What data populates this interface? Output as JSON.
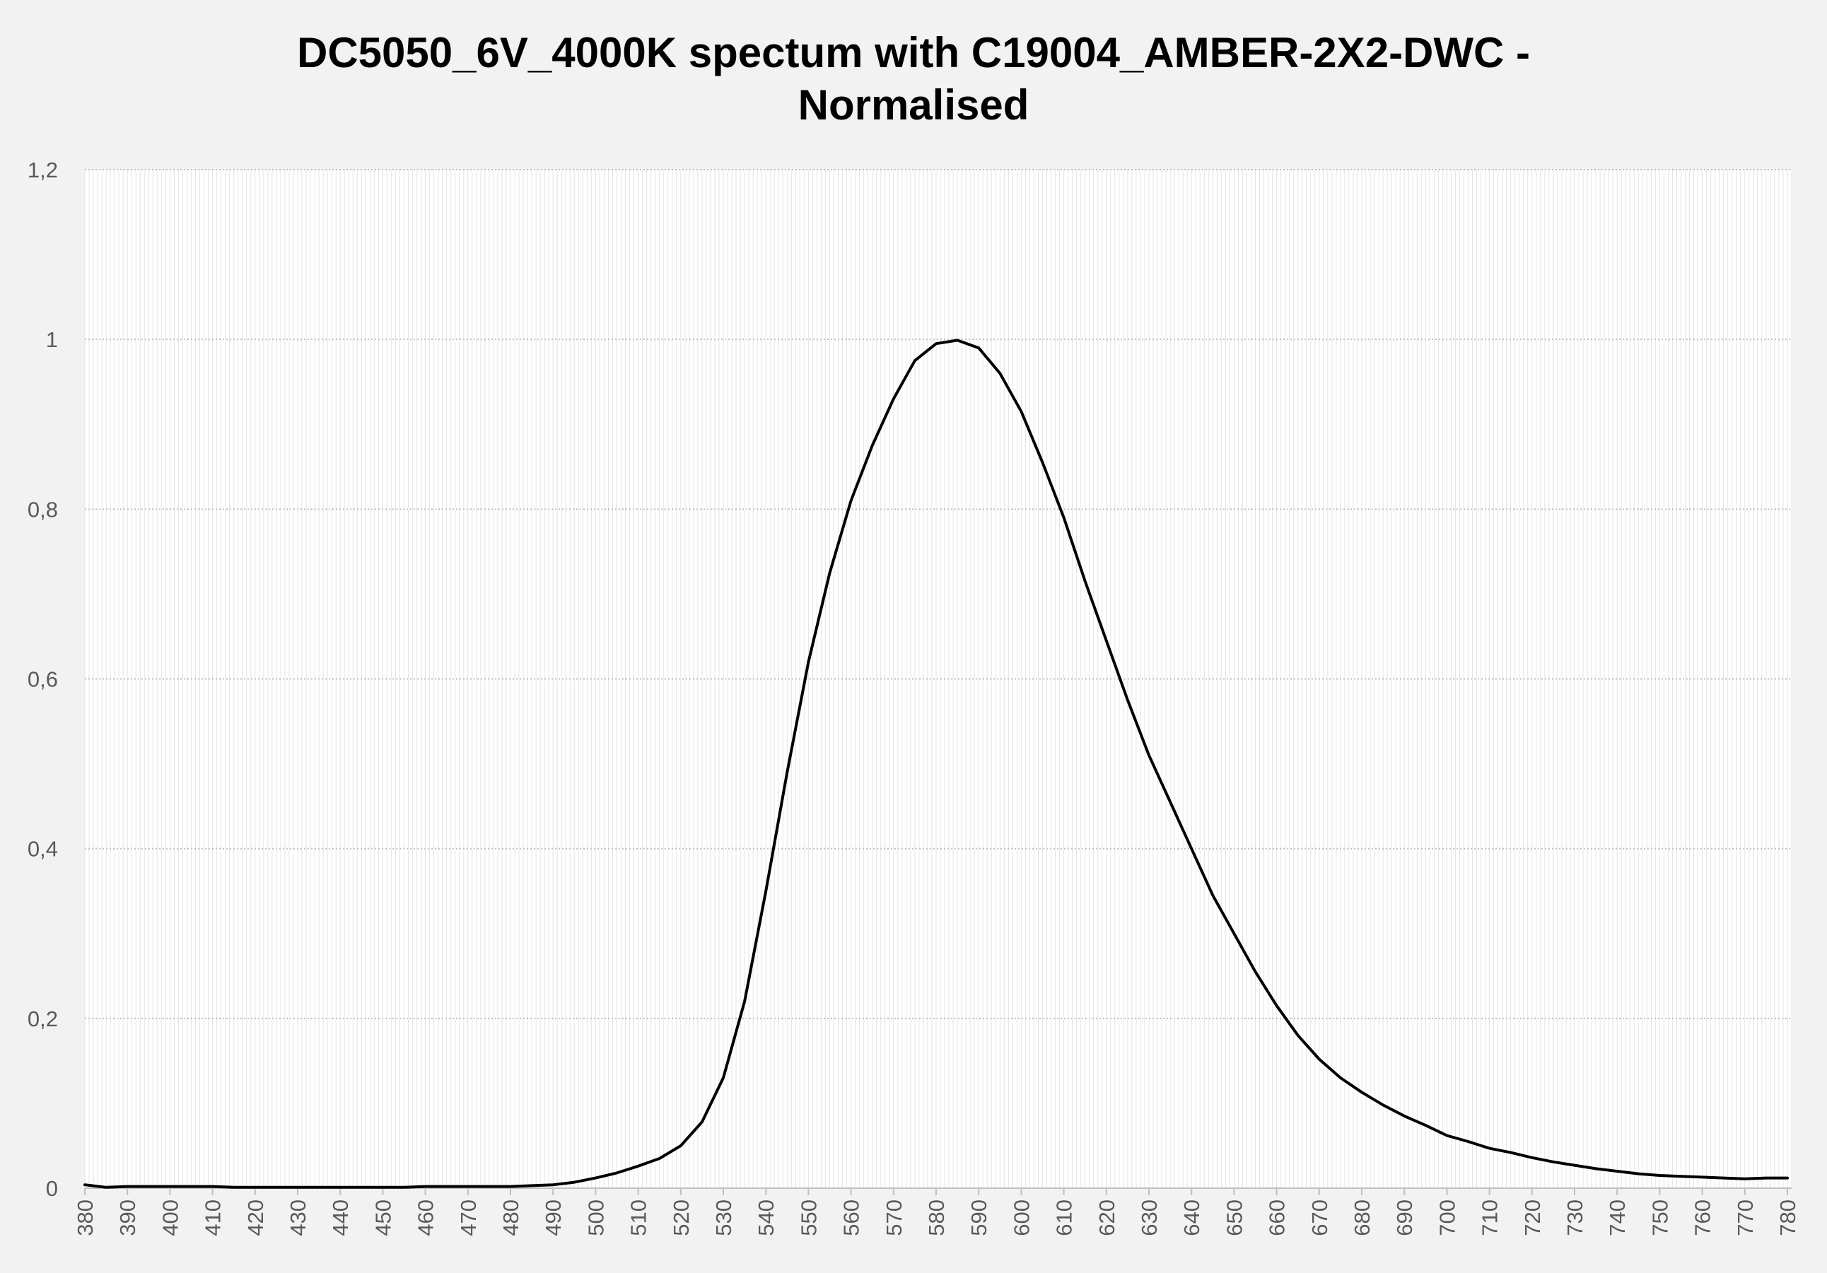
{
  "chart_data": {
    "type": "line",
    "title_line1": "DC5050_6V_4000K spectum with C19004_AMBER-2X2-DWC -",
    "title_line2": "Normalised",
    "xlabel": "",
    "ylabel": "",
    "xlim": [
      380,
      781
    ],
    "ylim": [
      0,
      1.2
    ],
    "y_ticks": [
      "0",
      "0,2",
      "0,4",
      "0,6",
      "0,8",
      "1",
      "1,2"
    ],
    "y_tick_values": [
      0,
      0.2,
      0.4,
      0.6,
      0.8,
      1.0,
      1.2
    ],
    "x_ticks": [
      "380",
      "390",
      "400",
      "410",
      "420",
      "430",
      "440",
      "450",
      "460",
      "470",
      "480",
      "490",
      "500",
      "510",
      "520",
      "530",
      "540",
      "550",
      "560",
      "570",
      "580",
      "590",
      "600",
      "610",
      "620",
      "630",
      "640",
      "650",
      "660",
      "670",
      "680",
      "690",
      "700",
      "710",
      "720",
      "730",
      "740",
      "750",
      "760",
      "770",
      "780"
    ],
    "grid": "horizontal-dotted",
    "legend": "none",
    "line_color": "#000000",
    "series": [
      {
        "x": [
          380,
          385,
          390,
          395,
          400,
          405,
          410,
          415,
          420,
          425,
          430,
          435,
          440,
          445,
          450,
          455,
          460,
          465,
          470,
          475,
          480,
          485,
          490,
          495,
          500,
          505,
          510,
          515,
          520,
          525,
          530,
          535,
          540,
          545,
          550,
          555,
          560,
          565,
          570,
          575,
          580,
          585,
          590,
          595,
          600,
          605,
          610,
          615,
          620,
          625,
          630,
          635,
          640,
          645,
          650,
          655,
          660,
          665,
          670,
          675,
          680,
          685,
          690,
          695,
          700,
          705,
          710,
          715,
          720,
          725,
          730,
          735,
          740,
          745,
          750,
          755,
          760,
          765,
          770,
          775,
          780
        ],
        "values": [
          0.004,
          0.001,
          0.002,
          0.002,
          0.002,
          0.002,
          0.002,
          0.001,
          0.001,
          0.001,
          0.001,
          0.001,
          0.001,
          0.001,
          0.001,
          0.001,
          0.002,
          0.002,
          0.002,
          0.002,
          0.002,
          0.003,
          0.004,
          0.007,
          0.012,
          0.018,
          0.026,
          0.035,
          0.05,
          0.078,
          0.13,
          0.22,
          0.35,
          0.49,
          0.62,
          0.725,
          0.81,
          0.875,
          0.93,
          0.975,
          0.995,
          0.999,
          0.99,
          0.96,
          0.915,
          0.855,
          0.79,
          0.715,
          0.645,
          0.575,
          0.51,
          0.455,
          0.4,
          0.345,
          0.3,
          0.255,
          0.215,
          0.18,
          0.152,
          0.13,
          0.113,
          0.098,
          0.085,
          0.074,
          0.062,
          0.055,
          0.047,
          0.042,
          0.036,
          0.031,
          0.027,
          0.023,
          0.02,
          0.017,
          0.015,
          0.014,
          0.013,
          0.012,
          0.011,
          0.012,
          0.012
        ]
      }
    ]
  }
}
